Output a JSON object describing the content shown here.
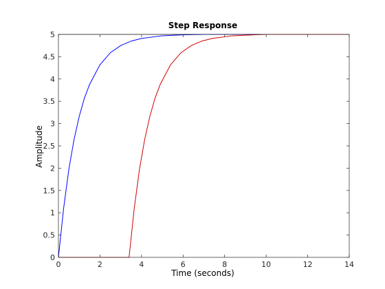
{
  "chart_data": {
    "type": "line",
    "title": "Step Response",
    "xlabel": "Time (seconds)",
    "ylabel": "Amplitude",
    "xlim": [
      0,
      14
    ],
    "ylim": [
      0,
      5
    ],
    "grid": false,
    "x_ticks": [
      "0",
      "2",
      "4",
      "6",
      "8",
      "10",
      "12",
      "14"
    ],
    "y_ticks": [
      "0",
      "0.5",
      "1",
      "1.5",
      "2",
      "2.5",
      "3",
      "3.5",
      "4",
      "4.5",
      "5"
    ],
    "reference_level": 5,
    "series": [
      {
        "color": "#0000ff",
        "x": [
          0,
          0.25,
          0.5,
          0.75,
          1,
          1.25,
          1.5,
          2,
          2.5,
          3,
          3.5,
          4,
          5,
          6,
          7,
          8,
          9,
          10,
          12,
          14
        ],
        "y": [
          0,
          1.1,
          1.97,
          2.64,
          3.16,
          3.57,
          3.88,
          4.32,
          4.59,
          4.75,
          4.85,
          4.91,
          4.97,
          4.99,
          5.0,
          5.0,
          5.0,
          5.0,
          5.0,
          5.0
        ]
      },
      {
        "color": "#cc0000",
        "x": [
          0,
          3.4,
          3.65,
          3.9,
          4.15,
          4.4,
          4.65,
          4.9,
          5.4,
          5.9,
          6.4,
          6.9,
          7.4,
          8.4,
          9.4,
          10,
          12,
          14
        ],
        "y": [
          0,
          0,
          1.1,
          1.97,
          2.64,
          3.16,
          3.57,
          3.88,
          4.32,
          4.59,
          4.75,
          4.85,
          4.91,
          4.97,
          4.99,
          5.0,
          5.0,
          5.0
        ]
      }
    ]
  }
}
